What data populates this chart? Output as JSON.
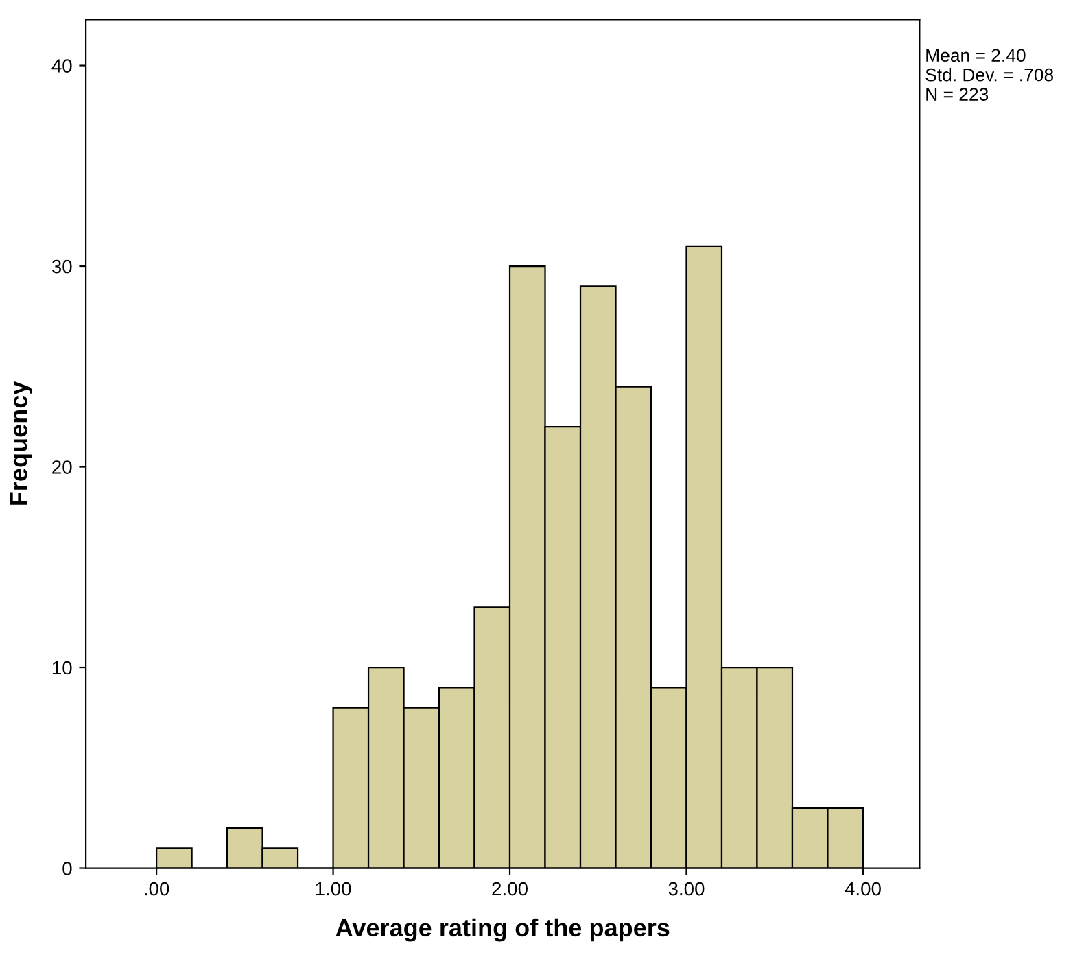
{
  "chart_data": {
    "type": "histogram",
    "xlabel": "Average rating of the papers",
    "ylabel": "Frequency",
    "bins": [
      0,
      0.2,
      0.4,
      0.6,
      0.8,
      1.0,
      1.2,
      1.4,
      1.6,
      1.8,
      2.0,
      2.2,
      2.4,
      2.6,
      2.8,
      3.0,
      3.2,
      3.4,
      3.6,
      3.8,
      4.0
    ],
    "values": [
      1,
      0,
      2,
      1,
      0,
      8,
      10,
      8,
      9,
      13,
      30,
      22,
      29,
      24,
      9,
      31,
      10,
      10,
      3,
      3
    ],
    "color": "#d8d2a0",
    "xlim": [
      -0.4,
      4.32
    ],
    "xticks": [
      {
        "value": 0,
        "label": ".00"
      },
      {
        "value": 1,
        "label": "1.00"
      },
      {
        "value": 2,
        "label": "2.00"
      },
      {
        "value": 3,
        "label": "3.00"
      },
      {
        "value": 4,
        "label": "4.00"
      }
    ],
    "ylim": [
      0,
      42.3
    ],
    "yticks": [
      0,
      10,
      20,
      30,
      40
    ],
    "grid": false,
    "annotations": [
      "Mean = 2.40\nStd. Dev. = .708\nN = 223"
    ]
  }
}
